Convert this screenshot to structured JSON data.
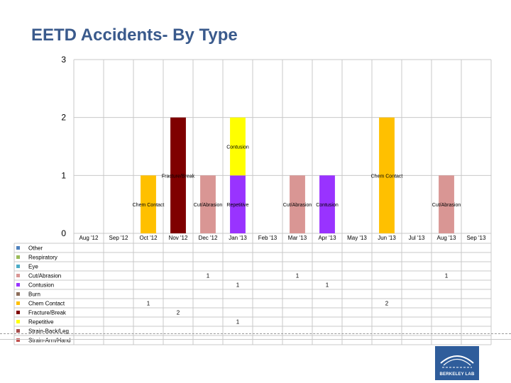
{
  "slide": {
    "title": "EETD Accidents- By Type",
    "logo_text": "BERKELEY LAB"
  },
  "chart_data": {
    "type": "bar",
    "stacked": true,
    "ylim": [
      0,
      3
    ],
    "y_ticks": [
      "0",
      "1",
      "2",
      "3"
    ],
    "categories": [
      "Aug '12",
      "Sep '12",
      "Oct '12",
      "Nov '12",
      "Dec '12",
      "Jan '13",
      "Feb '13",
      "Mar '13",
      "Apr '13",
      "May '13",
      "Jun '13",
      "Jul '13",
      "Aug '13",
      "Sep '13"
    ],
    "series": [
      {
        "name": "Other",
        "color": "#4f81bd",
        "values": [
          null,
          null,
          null,
          null,
          null,
          null,
          null,
          null,
          null,
          null,
          null,
          null,
          null,
          null
        ]
      },
      {
        "name": "Respiratory",
        "color": "#9bbb59",
        "values": [
          null,
          null,
          null,
          null,
          null,
          null,
          null,
          null,
          null,
          null,
          null,
          null,
          null,
          null
        ]
      },
      {
        "name": "Eye",
        "color": "#4bacc6",
        "values": [
          null,
          null,
          null,
          null,
          null,
          null,
          null,
          null,
          null,
          null,
          null,
          null,
          null,
          null
        ]
      },
      {
        "name": "Cut/Abrasion",
        "color": "#d99694",
        "values": [
          null,
          null,
          null,
          null,
          1,
          null,
          null,
          1,
          null,
          null,
          null,
          null,
          1,
          null
        ]
      },
      {
        "name": "Contusion",
        "color": "#9933ff",
        "values": [
          null,
          null,
          null,
          null,
          null,
          1,
          null,
          null,
          1,
          null,
          null,
          null,
          null,
          null
        ]
      },
      {
        "name": "Burn",
        "color": "#8c6d5a",
        "values": [
          null,
          null,
          null,
          null,
          null,
          null,
          null,
          null,
          null,
          null,
          null,
          null,
          null,
          null
        ]
      },
      {
        "name": "Chem Contact",
        "color": "#ffc000",
        "values": [
          null,
          null,
          1,
          null,
          null,
          null,
          null,
          null,
          null,
          null,
          2,
          null,
          null,
          null
        ]
      },
      {
        "name": "Fracture/Break",
        "color": "#7f0000",
        "values": [
          null,
          null,
          null,
          2,
          null,
          null,
          null,
          null,
          null,
          null,
          null,
          null,
          null,
          null
        ]
      },
      {
        "name": "Repetitive",
        "color": "#ffff00",
        "values": [
          null,
          null,
          null,
          null,
          null,
          1,
          null,
          null,
          null,
          null,
          null,
          null,
          null,
          null
        ]
      },
      {
        "name": "Strain-Back/Leg",
        "color": "#a64d4d",
        "values": [
          null,
          null,
          null,
          null,
          null,
          null,
          null,
          null,
          null,
          null,
          null,
          null,
          null,
          null
        ]
      },
      {
        "name": "Strain-Arm/Hand",
        "color": "#c0504d",
        "values": [
          null,
          null,
          null,
          null,
          null,
          null,
          null,
          null,
          null,
          null,
          null,
          null,
          null,
          null
        ]
      }
    ],
    "data_labels": [
      {
        "text": "Chem Contact",
        "category": "Oct '12",
        "y": 0.5
      },
      {
        "text": "Fracture/Break",
        "category": "Nov '12",
        "y": 1.0
      },
      {
        "text": "Cut/Abrasion",
        "category": "Dec '12",
        "y": 0.5
      },
      {
        "text": "Repetitive",
        "category": "Jan '13",
        "y": 0.5
      },
      {
        "text": "Contusion",
        "category": "Jan '13",
        "y": 1.5
      },
      {
        "text": "Cut/Abrasion",
        "category": "Mar '13",
        "y": 0.5
      },
      {
        "text": "Contusion",
        "category": "Apr '13",
        "y": 0.5
      },
      {
        "text": "Chem Contact",
        "category": "Jun '13",
        "y": 1.0
      },
      {
        "text": "Cut/Abrasion",
        "category": "Aug '13",
        "y": 0.5
      }
    ]
  }
}
